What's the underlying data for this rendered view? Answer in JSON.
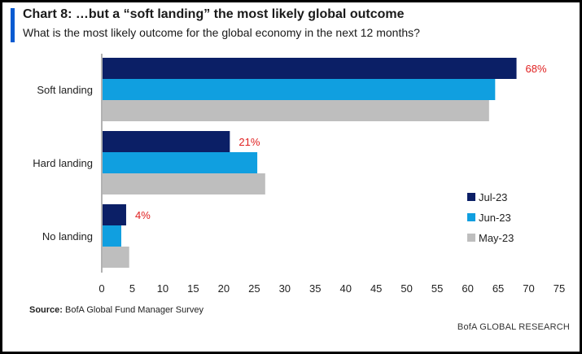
{
  "header": {
    "title": "Chart 8: …but a “soft landing” the most likely global outcome",
    "subtitle": "What is the most likely outcome for the global economy in the next 12 months?"
  },
  "footer": {
    "source_label": "Source:",
    "source_text": "BofA Global Fund Manager Survey",
    "brand": "BofA GLOBAL RESEARCH"
  },
  "chart_data": {
    "type": "bar",
    "orientation": "horizontal",
    "categories": [
      "Soft landing",
      "Hard landing",
      "No landing"
    ],
    "series": [
      {
        "name": "Jul-23",
        "color": "#0b1f66",
        "values": [
          68,
          21,
          4
        ],
        "labels": [
          "68%",
          "21%",
          "4%"
        ]
      },
      {
        "name": "Jun-23",
        "color": "#109fe0",
        "values": [
          64.5,
          25.5,
          3.2
        ]
      },
      {
        "name": "May-23",
        "color": "#bebebe",
        "values": [
          63.5,
          26.8,
          4.5
        ]
      }
    ],
    "data_label_color": "#e02020",
    "xlim": [
      0,
      75
    ],
    "xticks": [
      0,
      5,
      10,
      15,
      20,
      25,
      30,
      35,
      40,
      45,
      50,
      55,
      60,
      65,
      70,
      75
    ],
    "grid": false,
    "legend_position": "bottom-right"
  }
}
